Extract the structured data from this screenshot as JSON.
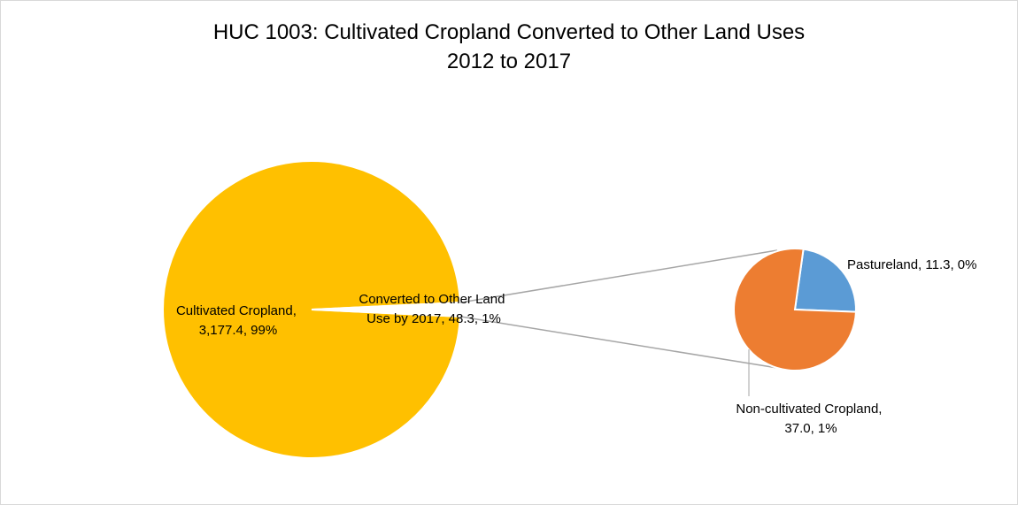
{
  "chart_data": {
    "type": "pie",
    "title_line1": "HUC 1003: Cultivated Cropland Converted to Other Land Uses",
    "title_line2": "2012 to 2017",
    "primary": {
      "slices": [
        {
          "name": "Cultivated Cropland",
          "value": 3177.4,
          "percent": "99%",
          "color": "#FFC000",
          "label_line1": "Cultivated Cropland,",
          "label_line2": "3,177.4, 99%"
        },
        {
          "name": "Converted to Other Land Use by 2017",
          "value": 48.3,
          "percent": "1%",
          "color": "#FFFFFF",
          "label_line1": "Converted to Other Land",
          "label_line2": "Use by 2017, 48.3, 1%"
        }
      ]
    },
    "secondary": {
      "slices": [
        {
          "name": "Pastureland",
          "value": 11.3,
          "percent": "0%",
          "color": "#5B9BD5",
          "label_line1": "Pastureland, 11.3, 0%"
        },
        {
          "name": "Non-cultivated Cropland",
          "value": 37.0,
          "percent": "1%",
          "color": "#ED7D31",
          "label_line1": "Non-cultivated Cropland,",
          "label_line2": "37.0, 1%"
        }
      ]
    }
  }
}
